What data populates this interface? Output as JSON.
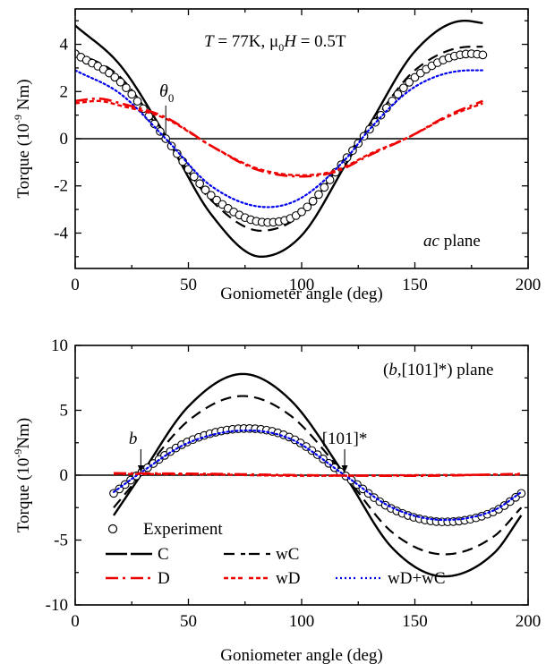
{
  "chart_data": [
    {
      "type": "line",
      "xlabel": "Goniometer angle (deg)",
      "ylabel": {
        "prefix": "Torque (10",
        "sup": "-9",
        "suffix": " Nm)"
      },
      "xlim": [
        0,
        200
      ],
      "ylim": [
        -5.5,
        5.5
      ],
      "xticks": [
        0,
        50,
        100,
        150,
        200
      ],
      "yticks": [
        -4,
        -2,
        0,
        2,
        4
      ],
      "annotation": {
        "T": "T",
        "eq1": " = 77K, ",
        "mu": "μ",
        "sub0": "0",
        "H": "H",
        "eq2": " = 0.5T"
      },
      "plane_label": {
        "italic": "ac",
        "rest": " plane"
      },
      "theta_label": {
        "symbol": "θ",
        "sub": "0",
        "x": 40
      },
      "zero_line": true,
      "series": [
        {
          "name": "C",
          "color": "#000000",
          "style": "solid",
          "x_range": [
            0,
            180
          ],
          "samples": [
            [
              0,
              4.8
            ],
            [
              20,
              3.1
            ],
            [
              40,
              0.1
            ],
            [
              60,
              -3.2
            ],
            [
              82,
              -5.0
            ],
            [
              100,
              -4.1
            ],
            [
              120,
              -1.0
            ],
            [
              130,
              0.6
            ],
            [
              150,
              3.7
            ],
            [
              172,
              5.0
            ],
            [
              180,
              4.9
            ]
          ]
        },
        {
          "name": "wC",
          "color": "#000000",
          "style": "dash",
          "x_range": [
            0,
            180
          ],
          "samples": [
            [
              0,
              3.7
            ],
            [
              20,
              2.6
            ],
            [
              40,
              0.0
            ],
            [
              60,
              -2.6
            ],
            [
              82,
              -3.9
            ],
            [
              100,
              -3.2
            ],
            [
              120,
              -0.7
            ],
            [
              130,
              0.5
            ],
            [
              150,
              2.9
            ],
            [
              175,
              3.9
            ],
            [
              180,
              3.9
            ]
          ]
        },
        {
          "name": "Experiment",
          "color": "#000000",
          "style": "circles",
          "x_range": [
            0,
            180
          ],
          "samples": [
            [
              0,
              3.6
            ],
            [
              20,
              2.4
            ],
            [
              40,
              0.0
            ],
            [
              60,
              -2.4
            ],
            [
              85,
              -3.55
            ],
            [
              100,
              -3.1
            ],
            [
              120,
              -0.8
            ],
            [
              130,
              0.4
            ],
            [
              150,
              2.6
            ],
            [
              175,
              3.6
            ],
            [
              180,
              3.55
            ]
          ]
        },
        {
          "name": "wD+wC",
          "color": "#0000ee",
          "style": "dot",
          "x_range": [
            0,
            180
          ],
          "samples": [
            [
              0,
              2.9
            ],
            [
              20,
              1.9
            ],
            [
              40,
              0.0
            ],
            [
              60,
              -2.0
            ],
            [
              85,
              -2.9
            ],
            [
              100,
              -2.5
            ],
            [
              120,
              -0.8
            ],
            [
              130,
              0.4
            ],
            [
              150,
              2.2
            ],
            [
              175,
              2.9
            ],
            [
              180,
              2.9
            ]
          ]
        },
        {
          "name": "D",
          "color": "#ee0000",
          "style": "dashdot",
          "x_range": [
            0,
            180
          ],
          "samples": [
            [
              0,
              1.6
            ],
            [
              10,
              1.7
            ],
            [
              20,
              1.5
            ],
            [
              40,
              0.9
            ],
            [
              60,
              -0.3
            ],
            [
              80,
              -1.3
            ],
            [
              100,
              -1.6
            ],
            [
              115,
              -1.4
            ],
            [
              130,
              -0.7
            ],
            [
              148,
              0.1
            ],
            [
              165,
              1.0
            ],
            [
              180,
              1.6
            ]
          ]
        },
        {
          "name": "wD",
          "color": "#ee0000",
          "style": "shortdash",
          "x_range": [
            0,
            180
          ],
          "samples": [
            [
              0,
              1.5
            ],
            [
              10,
              1.6
            ],
            [
              20,
              1.4
            ],
            [
              40,
              0.85
            ],
            [
              60,
              -0.3
            ],
            [
              80,
              -1.25
            ],
            [
              100,
              -1.55
            ],
            [
              115,
              -1.35
            ],
            [
              130,
              -0.65
            ],
            [
              148,
              0.1
            ],
            [
              165,
              0.95
            ],
            [
              180,
              1.5
            ]
          ]
        }
      ]
    },
    {
      "type": "line",
      "xlabel": "Goniometer angle (deg)",
      "ylabel": {
        "prefix": "Torque  (10",
        "sup": "-9",
        "suffix": "Nm)"
      },
      "xlim": [
        0,
        200
      ],
      "ylim": [
        -10,
        10
      ],
      "xticks": [
        0,
        50,
        100,
        150,
        200
      ],
      "yticks": [
        -10,
        -5,
        0,
        5,
        10
      ],
      "plane_label": {
        "text": "(b,[101]*) plane",
        "pre": "(",
        "italic": "b",
        "rest": ",[101]*) plane"
      },
      "arrows": [
        {
          "label": "b",
          "x": 29,
          "italic": true
        },
        {
          "label": "[101]*",
          "x": 119,
          "italic": false
        }
      ],
      "zero_line": true,
      "legend": {
        "rows": [
          [
            {
              "name": "Experiment",
              "style": "circles",
              "color": "#000000"
            }
          ],
          [
            {
              "name": "C",
              "style": "solid",
              "color": "#000000"
            },
            {
              "name": "wC",
              "style": "dash",
              "color": "#000000"
            }
          ],
          [
            {
              "name": "D",
              "style": "dashdot",
              "color": "#ee0000"
            },
            {
              "name": "wD",
              "style": "shortdash",
              "color": "#ee0000"
            },
            {
              "name": "wD+wC",
              "style": "dot",
              "color": "#0000ee"
            }
          ]
        ]
      },
      "series": [
        {
          "name": "C",
          "color": "#000000",
          "style": "solid",
          "x_range": [
            17,
            197
          ],
          "samples": [
            [
              17,
              -3.1
            ],
            [
              29,
              0.0
            ],
            [
              50,
              5.3
            ],
            [
              74,
              7.8
            ],
            [
              95,
              5.8
            ],
            [
              119,
              0.0
            ],
            [
              140,
              -5.6
            ],
            [
              163,
              -7.8
            ],
            [
              185,
              -6.0
            ],
            [
              197,
              -3.1
            ]
          ]
        },
        {
          "name": "wC",
          "color": "#000000",
          "style": "dash",
          "x_range": [
            17,
            197
          ],
          "samples": [
            [
              17,
              -2.5
            ],
            [
              29,
              0.0
            ],
            [
              50,
              4.2
            ],
            [
              74,
              6.1
            ],
            [
              95,
              4.6
            ],
            [
              119,
              0.0
            ],
            [
              140,
              -4.4
            ],
            [
              163,
              -6.1
            ],
            [
              185,
              -4.7
            ],
            [
              197,
              -2.5
            ]
          ]
        },
        {
          "name": "Experiment",
          "color": "#000000",
          "style": "circles",
          "x_range": [
            17,
            197
          ],
          "samples": [
            [
              17,
              -1.4
            ],
            [
              29,
              0.2
            ],
            [
              50,
              2.6
            ],
            [
              76,
              3.6
            ],
            [
              95,
              2.9
            ],
            [
              119,
              0.0
            ],
            [
              140,
              -2.6
            ],
            [
              163,
              -3.6
            ],
            [
              185,
              -2.8
            ],
            [
              197,
              -1.4
            ]
          ]
        },
        {
          "name": "wD+wC",
          "color": "#0000ee",
          "style": "dot",
          "x_range": [
            17,
            197
          ],
          "samples": [
            [
              17,
              -1.3
            ],
            [
              29,
              0.2
            ],
            [
              50,
              2.5
            ],
            [
              76,
              3.45
            ],
            [
              95,
              2.8
            ],
            [
              119,
              0.0
            ],
            [
              140,
              -2.5
            ],
            [
              163,
              -3.45
            ],
            [
              185,
              -2.7
            ],
            [
              197,
              -1.3
            ]
          ]
        },
        {
          "name": "D",
          "color": "#ee0000",
          "style": "dashdot",
          "x_range": [
            17,
            197
          ],
          "samples": [
            [
              17,
              0.15
            ],
            [
              60,
              0.1
            ],
            [
              100,
              0.0
            ],
            [
              150,
              -0.05
            ],
            [
              197,
              0.1
            ]
          ]
        },
        {
          "name": "wD",
          "color": "#ee0000",
          "style": "shortdash",
          "x_range": [
            17,
            197
          ],
          "samples": [
            [
              17,
              0.1
            ],
            [
              60,
              0.05
            ],
            [
              100,
              -0.05
            ],
            [
              150,
              0.0
            ],
            [
              197,
              0.05
            ]
          ]
        }
      ]
    }
  ]
}
